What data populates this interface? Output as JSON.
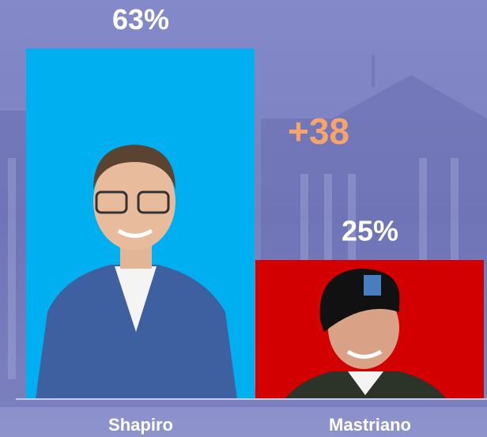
{
  "chart_data": {
    "type": "bar",
    "categories": [
      "Shapiro",
      "Mastriano"
    ],
    "values": [
      63,
      25
    ],
    "value_labels": [
      "63%",
      "25%"
    ],
    "colors": [
      "#00aff0",
      "#d20000"
    ],
    "annotation": "+38"
  }
}
